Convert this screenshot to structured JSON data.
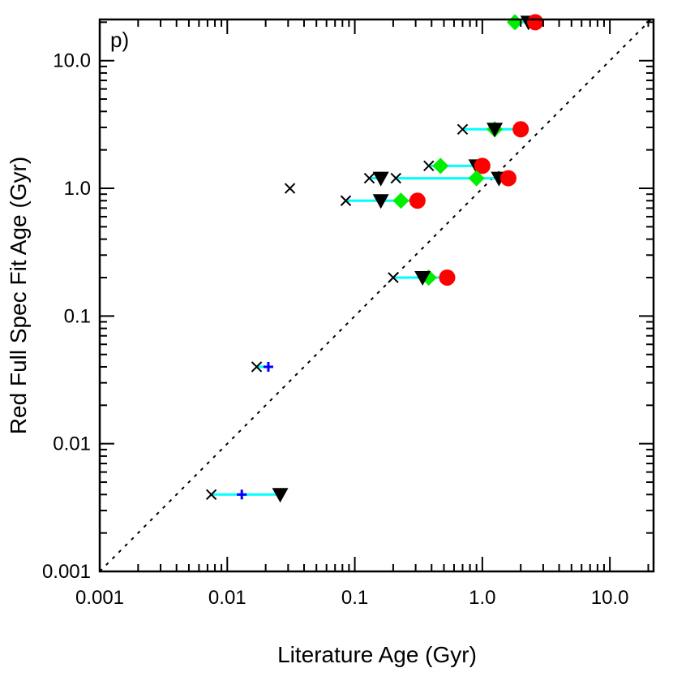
{
  "chart_data": {
    "type": "scatter",
    "xscale": "log",
    "yscale": "log",
    "xlim": [
      0.001,
      22
    ],
    "ylim": [
      0.001,
      21
    ],
    "panel_label": "p)",
    "xlabel": "Literature Age (Gyr)",
    "ylabel": "Red Full Spec Fit Age (Gyr)",
    "xticks": [
      {
        "value": 0.001,
        "label": "0.001"
      },
      {
        "value": 0.01,
        "label": "0.01"
      },
      {
        "value": 0.1,
        "label": "0.1"
      },
      {
        "value": 1.0,
        "label": "1.0"
      },
      {
        "value": 10.0,
        "label": "10.0"
      }
    ],
    "yticks": [
      {
        "value": 0.001,
        "label": "0.001"
      },
      {
        "value": 0.01,
        "label": "0.01"
      },
      {
        "value": 0.1,
        "label": "0.1"
      },
      {
        "value": 1.0,
        "label": "1.0"
      },
      {
        "value": 10.0,
        "label": "10.0"
      }
    ],
    "reference_line": {
      "style": "dotted",
      "relation": "y = x",
      "color": "#000000"
    },
    "series_styles": {
      "cross": {
        "marker": "x",
        "color": "#000000"
      },
      "plus": {
        "marker": "+",
        "color": "#0000ff"
      },
      "triangle": {
        "marker": "triangle-down",
        "color": "#000000"
      },
      "diamond": {
        "marker": "diamond",
        "color": "#00ee00"
      },
      "circle": {
        "marker": "circle",
        "color": "#ff0000"
      },
      "connector": {
        "color": "#00ffff"
      }
    },
    "objects": [
      {
        "y": 20,
        "diamond": 1.8,
        "triangle": 2.3,
        "circle": 2.6
      },
      {
        "y": 2.9,
        "cross": 0.7,
        "triangle": 1.25,
        "diamond": 1.25,
        "circle": 2.0
      },
      {
        "y": 1.5,
        "cross": 0.38,
        "diamond": 0.47,
        "triangle": 0.9,
        "circle": 1.0
      },
      {
        "y": 1.2,
        "cross": 0.21,
        "diamond": 0.9,
        "triangle": 1.35,
        "circle": 1.6
      },
      {
        "y": 1.2,
        "cross": 0.13,
        "triangle": 0.16
      },
      {
        "y": 1.0,
        "cross": 0.031
      },
      {
        "y": 0.8,
        "cross": 0.085,
        "triangle": 0.16,
        "diamond": 0.23,
        "circle": 0.31
      },
      {
        "y": 0.2,
        "cross": 0.2,
        "triangle": 0.34,
        "diamond": 0.38,
        "circle": 0.53
      },
      {
        "y": 0.04,
        "cross": 0.017,
        "plus": 0.021
      },
      {
        "y": 0.004,
        "cross": 0.0075,
        "plus": 0.013,
        "triangle": 0.026
      }
    ]
  }
}
